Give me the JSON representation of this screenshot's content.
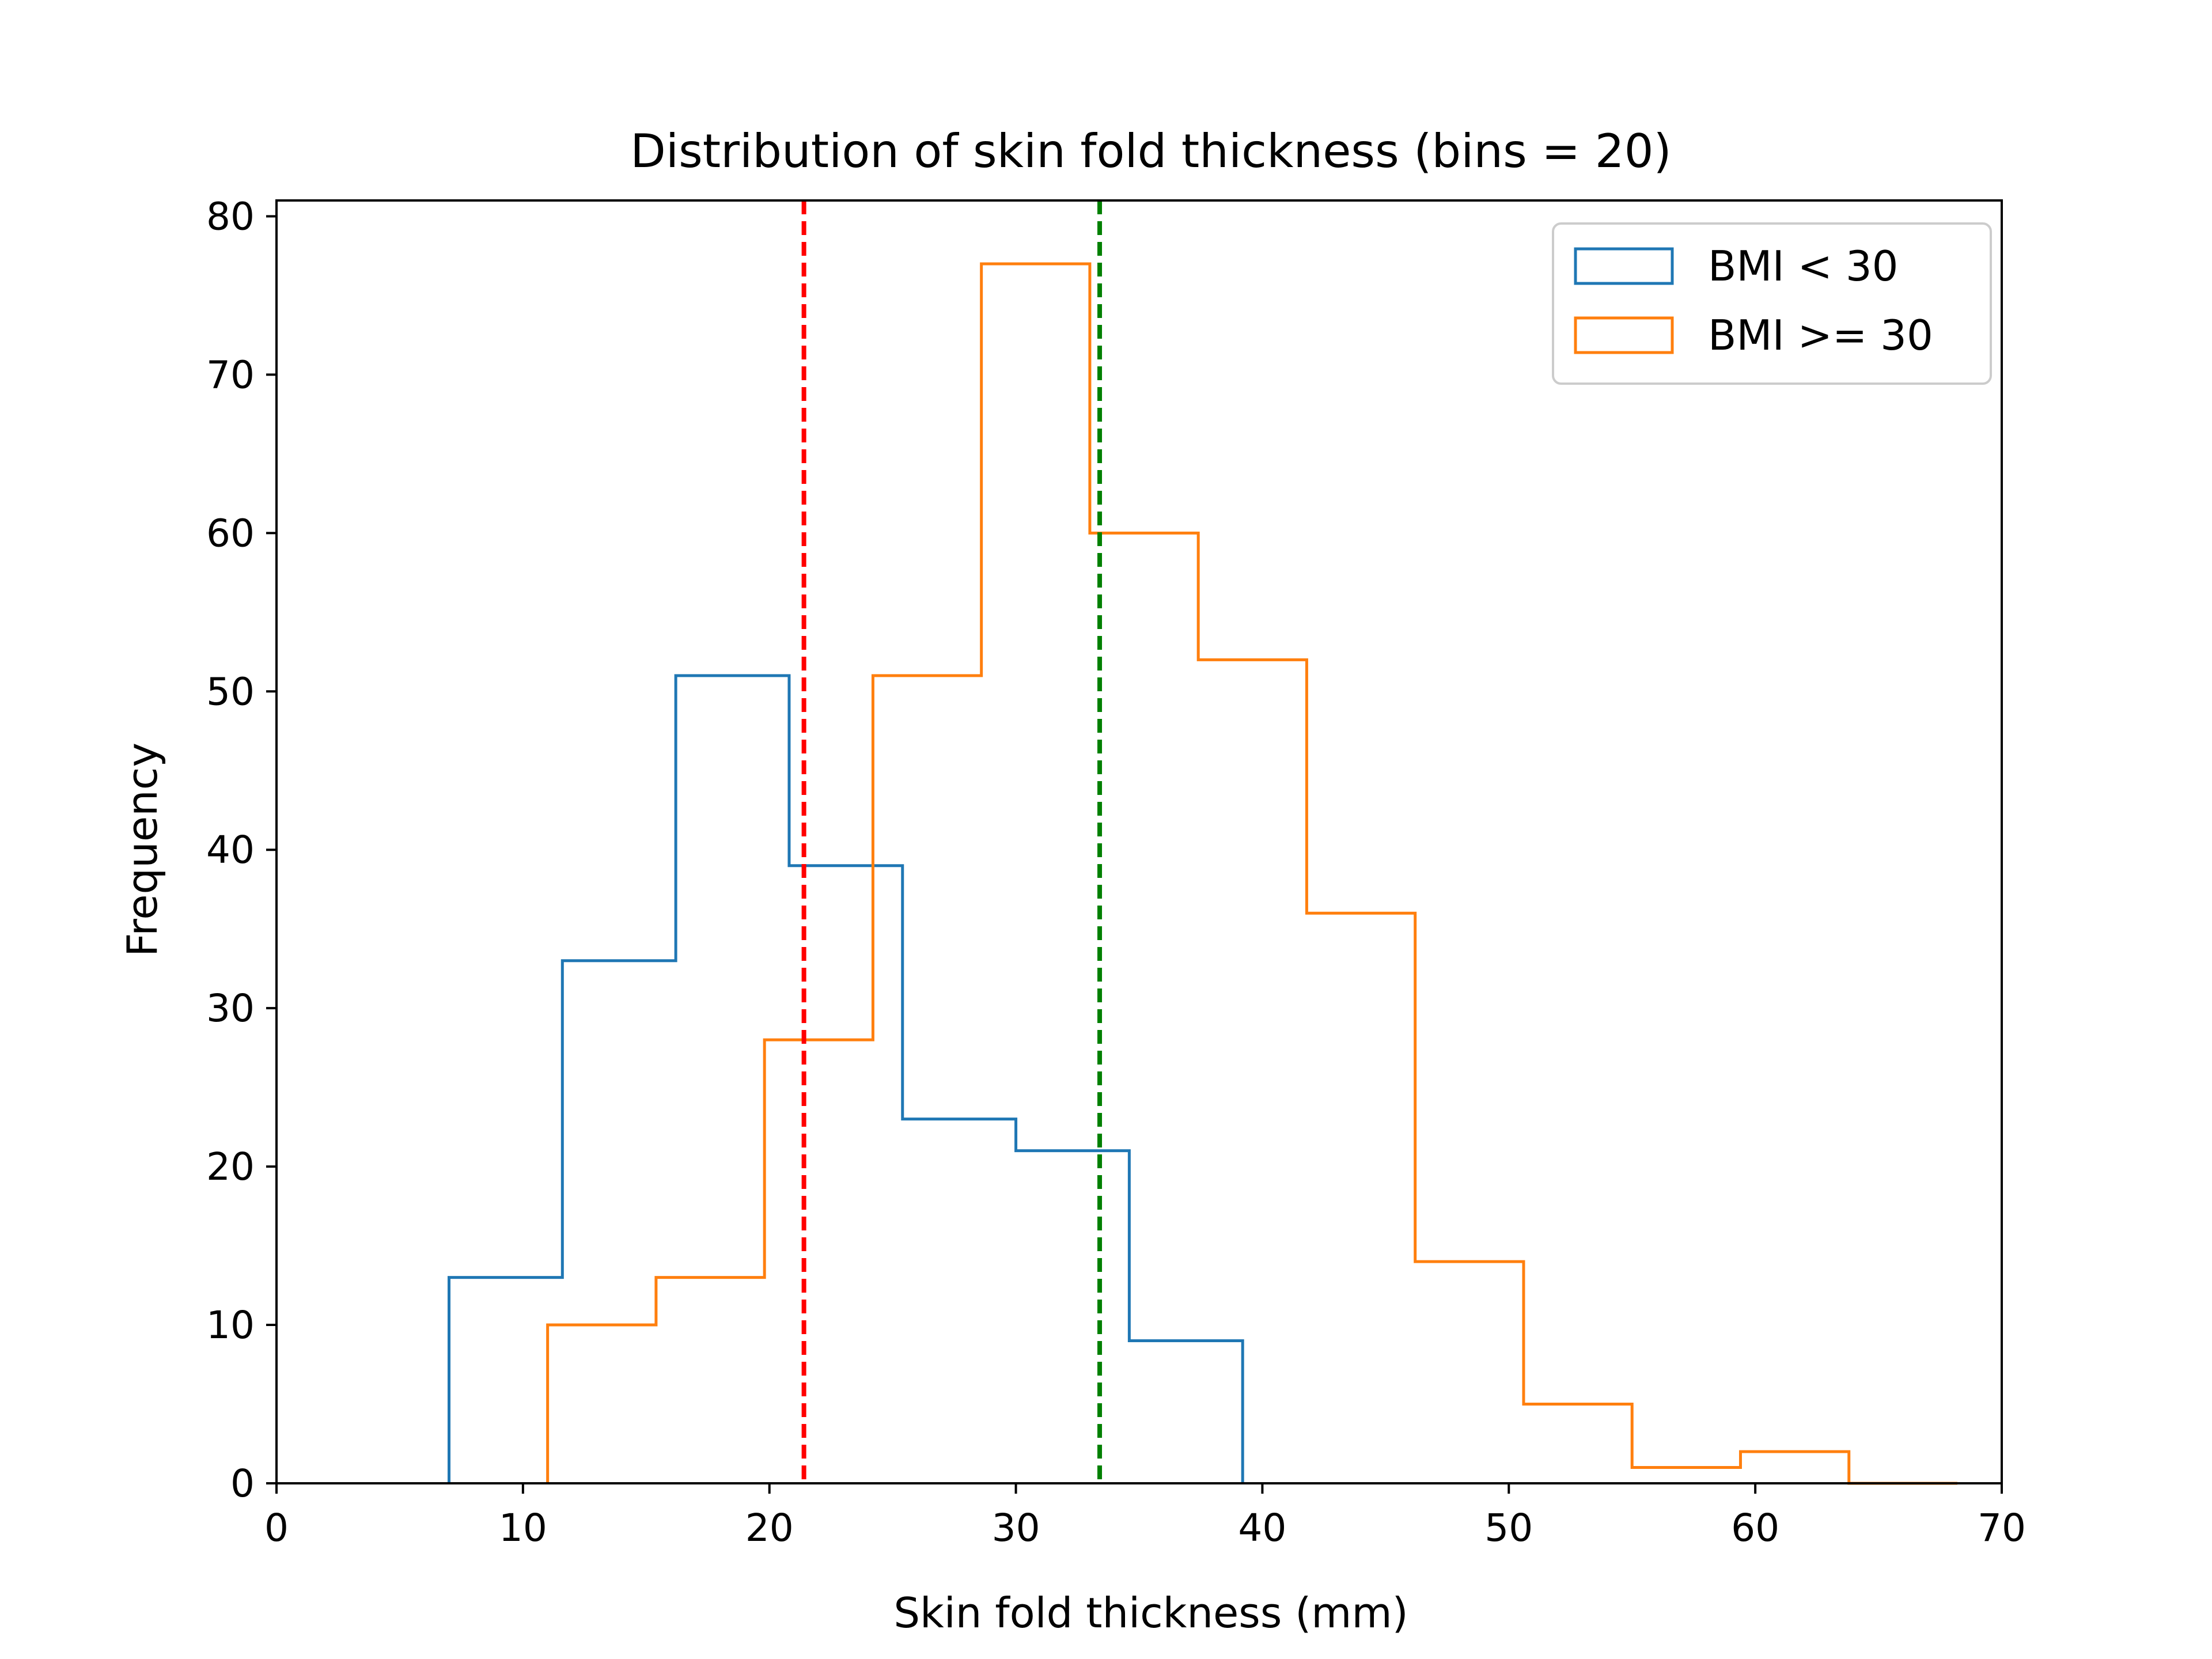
{
  "chart_data": {
    "type": "histogram",
    "title": "Distribution of skin fold thickness (bins = 20)",
    "xlabel": "Skin fold thickness (mm)",
    "ylabel": "Frequency",
    "xlim": [
      0,
      70
    ],
    "ylim": [
      0,
      81
    ],
    "xticks": [
      0,
      10,
      20,
      30,
      40,
      50,
      60,
      70
    ],
    "yticks": [
      0,
      10,
      20,
      30,
      40,
      50,
      60,
      70,
      80
    ],
    "grid": false,
    "legend_position": "top-right",
    "series": [
      {
        "name": "BMI < 30",
        "color": "#1f77b4",
        "bin_edges": [
          7.0,
          11.6,
          16.2,
          20.8,
          25.4,
          30.0,
          34.6,
          39.2
        ],
        "counts": [
          13,
          33,
          51,
          39,
          23,
          21,
          9
        ]
      },
      {
        "name": "BMI >= 30",
        "color": "#ff7f0e",
        "bin_edges": [
          11.0,
          15.4,
          19.8,
          24.2,
          28.6,
          33.0,
          37.4,
          41.8,
          46.2,
          50.6,
          55.0,
          59.4,
          63.8,
          68.2
        ],
        "counts": [
          10,
          13,
          28,
          51,
          77,
          60,
          52,
          36,
          14,
          5,
          1,
          2,
          0
        ]
      }
    ],
    "reference_lines": [
      {
        "x": 21.4,
        "color": "#ff0000",
        "style": "dashed"
      },
      {
        "x": 33.4,
        "color": "#008000",
        "style": "dashed"
      }
    ]
  }
}
